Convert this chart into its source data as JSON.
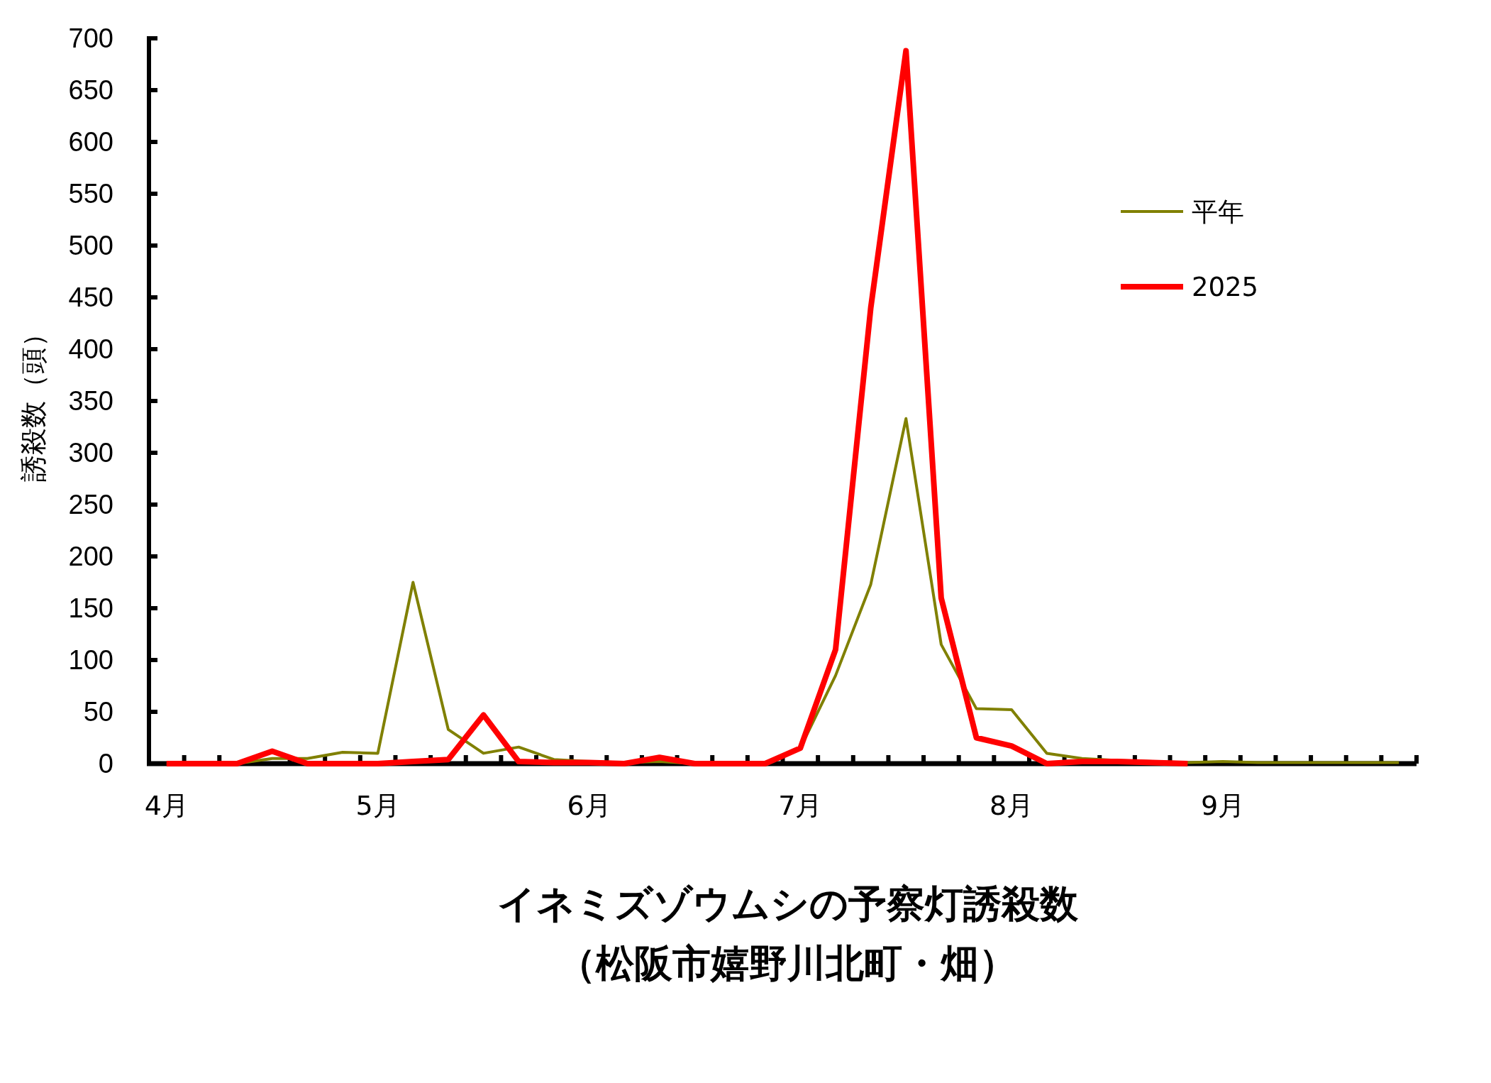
{
  "chart_data": {
    "type": "line",
    "title": "イネミズゾウムシの予察灯誘殺数",
    "subtitle": "（松阪市嬉野川北町・畑）",
    "ylabel": "誘殺数（頭）",
    "categories": [
      "4月",
      null,
      null,
      null,
      null,
      null,
      "5月",
      null,
      null,
      null,
      null,
      null,
      "6月",
      null,
      null,
      null,
      null,
      null,
      "7月",
      null,
      null,
      null,
      null,
      null,
      "8月",
      null,
      null,
      null,
      null,
      null,
      "9月",
      null,
      null,
      null,
      null,
      null
    ],
    "series": [
      {
        "name": "平年",
        "color": "#808000",
        "values": [
          0,
          0,
          0,
          5,
          5,
          11,
          10,
          175,
          33,
          10,
          16,
          4,
          2,
          1,
          2,
          0,
          0,
          0,
          15,
          85,
          173,
          333,
          115,
          53,
          52,
          10,
          5,
          3,
          2,
          1,
          2,
          1,
          1,
          1,
          1,
          1
        ]
      },
      {
        "name": "2025",
        "color": "#ff0000",
        "values": [
          0,
          0,
          0,
          12,
          0,
          0,
          0,
          2,
          4,
          47,
          2,
          1,
          1,
          0,
          6,
          0,
          0,
          0,
          15,
          110,
          440,
          688,
          160,
          25,
          17,
          0,
          2,
          2,
          1,
          0,
          null,
          null,
          null,
          null,
          null,
          null
        ]
      }
    ],
    "ylim": [
      0,
      700
    ],
    "yticks": [
      0,
      50,
      100,
      150,
      200,
      250,
      300,
      350,
      400,
      450,
      500,
      550,
      600,
      650,
      700
    ],
    "grid": false,
    "legend": "top right",
    "marker": "none",
    "line_style": "solid"
  }
}
